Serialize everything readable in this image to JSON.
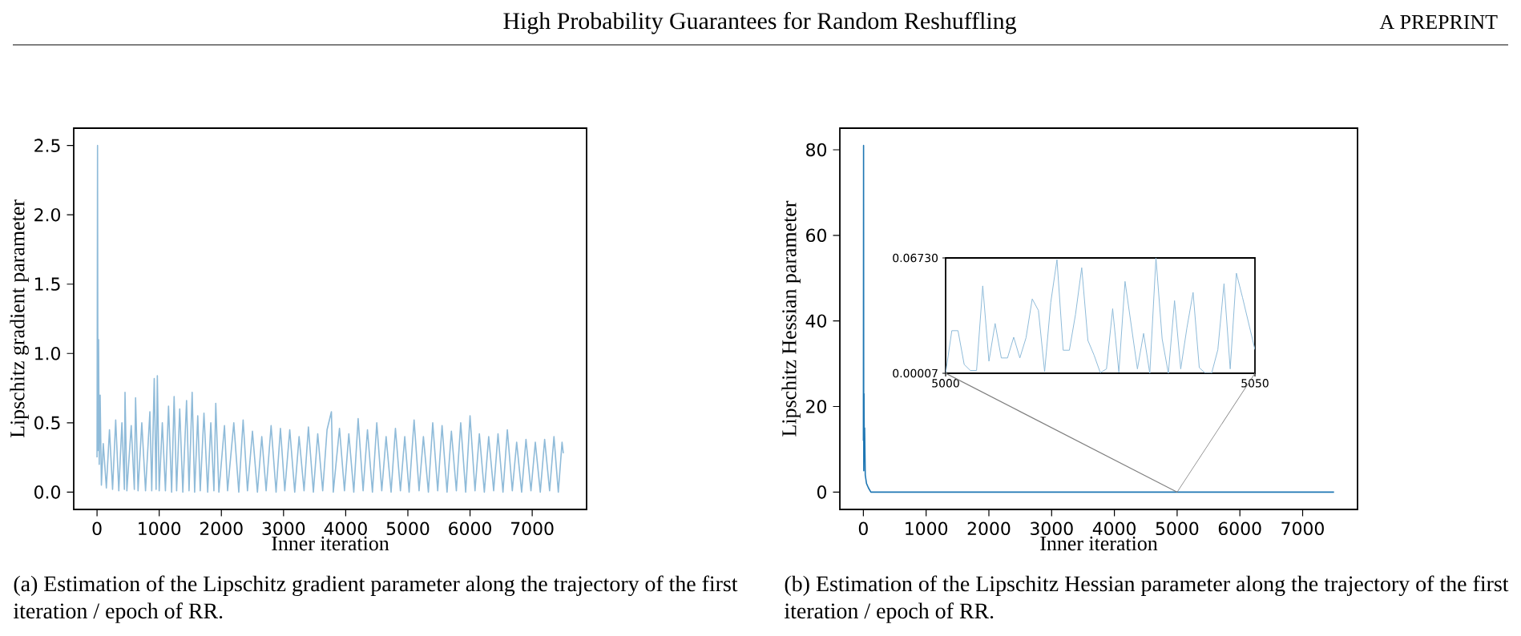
{
  "chart_data": [
    {
      "type": "line",
      "xlabel": "Inner iteration",
      "ylabel": "Lipschitz gradient parameter",
      "color": "#8fbbd9",
      "annotations": [
        "High Probability Guarantees for Random Reshuffling",
        "A PREPRINT",
        "(a) Estimation of the Lipschitz gradient parameter along the trajectory of the first iteration / epoch of RR."
      ],
      "xlim": [
        -375,
        7875
      ],
      "ylim": [
        -0.125,
        2.625
      ],
      "xticks": [
        0,
        1000,
        2000,
        3000,
        4000,
        5000,
        6000,
        7000
      ],
      "yticks": [
        {
          "value": 0,
          "label": "0.0"
        },
        0.5,
        {
          "value": 1,
          "label": "1.0"
        },
        1.5,
        {
          "value": 2,
          "label": "2.0"
        },
        2.5
      ],
      "x": [
        0,
        8,
        15,
        25,
        35,
        50,
        70,
        100,
        150,
        200,
        250,
        300,
        350,
        400,
        440,
        450,
        480,
        550,
        600,
        620,
        660,
        720,
        780,
        850,
        880,
        920,
        950,
        970,
        1000,
        1050,
        1100,
        1150,
        1200,
        1240,
        1280,
        1330,
        1380,
        1440,
        1480,
        1530,
        1570,
        1620,
        1660,
        1720,
        1780,
        1830,
        1880,
        1910,
        1960,
        2050,
        2100,
        2200,
        2280,
        2350,
        2420,
        2500,
        2580,
        2650,
        2720,
        2800,
        2880,
        2950,
        3020,
        3100,
        3180,
        3250,
        3330,
        3400,
        3480,
        3550,
        3630,
        3700,
        3770,
        3800,
        3900,
        3980,
        4050,
        4130,
        4200,
        4280,
        4350,
        4430,
        4500,
        4580,
        4650,
        4730,
        4800,
        4880,
        4950,
        5020,
        5100,
        5180,
        5250,
        5330,
        5400,
        5480,
        5550,
        5630,
        5700,
        5780,
        5850,
        5930,
        6000,
        6080,
        6150,
        6230,
        6300,
        6380,
        6450,
        6530,
        6600,
        6680,
        6750,
        6830,
        6900,
        6980,
        7050,
        7130,
        7200,
        7280,
        7350,
        7420,
        7480,
        7500
      ],
      "values": [
        0.25,
        2.5,
        0.3,
        1.1,
        0.2,
        0.7,
        0.05,
        0.35,
        0.03,
        0.45,
        0.02,
        0.52,
        0.01,
        0.5,
        0.02,
        0.72,
        0.01,
        0.48,
        0.02,
        0.68,
        0.01,
        0.5,
        0.01,
        0.58,
        0.01,
        0.82,
        0.02,
        0.84,
        0.01,
        0.5,
        0.01,
        0.62,
        0.0,
        0.69,
        0.01,
        0.6,
        0.0,
        0.66,
        0.01,
        0.72,
        0.0,
        0.55,
        0.01,
        0.57,
        0.0,
        0.5,
        0.01,
        0.64,
        0.0,
        0.48,
        0.01,
        0.5,
        0.0,
        0.52,
        0.01,
        0.44,
        0.0,
        0.4,
        0.01,
        0.48,
        0.0,
        0.46,
        0.01,
        0.45,
        0.0,
        0.4,
        0.01,
        0.47,
        0.0,
        0.42,
        0.01,
        0.45,
        0.58,
        0.0,
        0.46,
        0.01,
        0.42,
        0.0,
        0.53,
        0.01,
        0.45,
        0.0,
        0.5,
        0.01,
        0.4,
        0.0,
        0.46,
        0.01,
        0.4,
        0.0,
        0.52,
        0.01,
        0.4,
        0.0,
        0.5,
        0.01,
        0.48,
        0.0,
        0.44,
        0.01,
        0.5,
        0.0,
        0.55,
        0.01,
        0.42,
        0.0,
        0.4,
        0.01,
        0.42,
        0.0,
        0.45,
        0.01,
        0.36,
        0.0,
        0.38,
        0.01,
        0.36,
        0.0,
        0.38,
        0.01,
        0.4,
        0.0,
        0.36,
        0.28
      ]
    },
    {
      "type": "line",
      "xlabel": "Inner iteration",
      "ylabel": "Lipschitz Hessian parameter",
      "color": "#1f77b4",
      "annotations": [
        "(b) Estimation of the Lipschitz Hessian parameter along the trajectory of the first iteration / epoch of RR."
      ],
      "xlim": [
        -375,
        7875
      ],
      "ylim": [
        -4.05,
        85.05
      ],
      "xticks": [
        0,
        1000,
        2000,
        3000,
        4000,
        5000,
        6000,
        7000
      ],
      "yticks": [
        0,
        20,
        40,
        60,
        80
      ],
      "x": [
        0,
        3,
        6,
        10,
        15,
        20,
        30,
        50,
        80,
        120,
        200,
        400,
        1000,
        2000,
        3000,
        4000,
        5000,
        6000,
        7000,
        7500
      ],
      "values": [
        12,
        81,
        5,
        23,
        8,
        15,
        4,
        2,
        1,
        0,
        0,
        0,
        0,
        0,
        0,
        0,
        0,
        0,
        0,
        0
      ]
    },
    {
      "type": "line",
      "color": "#8fbbd9",
      "xlim": [
        5000,
        5050
      ],
      "ylim": [
        7e-05,
        0.0673
      ],
      "xticks": [
        5000,
        5050
      ],
      "yticks": [
        {
          "value": 7e-05,
          "label": "0.00007"
        },
        {
          "value": 0.0673,
          "label": "0.06730"
        }
      ],
      "x": [
        5000,
        5001,
        5002,
        5003,
        5004,
        5005,
        5006,
        5007,
        5008,
        5009,
        5010,
        5011,
        5012,
        5013,
        5014,
        5015,
        5016,
        5017,
        5018,
        5019,
        5020,
        5021,
        5022,
        5023,
        5024,
        5025,
        5026,
        5027,
        5028,
        5029,
        5030,
        5031,
        5032,
        5033,
        5034,
        5035,
        5036,
        5037,
        5038,
        5039,
        5040,
        5041,
        5042,
        5043,
        5044,
        5045,
        5046,
        5047,
        5048,
        5050
      ],
      "values": [
        7e-05,
        0.0249,
        0.0249,
        0.0052,
        0.0017,
        0.0017,
        0.051,
        0.0071,
        0.0291,
        0.009,
        0.009,
        0.0211,
        0.009,
        0.0208,
        0.0434,
        0.0367,
        0.001,
        0.0415,
        0.0663,
        0.0135,
        0.0135,
        0.0345,
        0.0616,
        0.0192,
        0.0106,
        0.0004,
        0.0026,
        0.0377,
        0.0007,
        0.0536,
        0.0281,
        0.0026,
        0.0233,
        7e-05,
        0.0673,
        0.0201,
        7e-05,
        0.0424,
        0.0026,
        0.0265,
        0.0472,
        0.0033,
        7e-05,
        7e-05,
        0.0138,
        0.0523,
        0.0026,
        0.0584,
        0.0441,
        0.0138
      ]
    }
  ]
}
